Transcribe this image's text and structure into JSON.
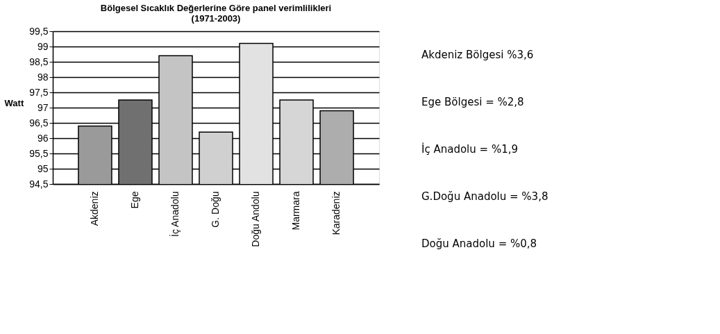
{
  "chart_data": {
    "type": "bar",
    "title": "Bölgesel Sıcaklık Değerlerine Göre panel verimlilikleri\n(1971-2003)",
    "ylabel": "Watt",
    "categories": [
      "Akdeniz",
      "Ege",
      "İç Anadolu",
      "G. Doğu",
      "Doğu Andolu",
      "Marmara",
      "Karadeniz"
    ],
    "values": [
      96.4,
      97.25,
      98.7,
      96.2,
      99.1,
      97.25,
      96.9
    ],
    "colors": [
      "#9a9a9a",
      "#707070",
      "#c4c4c4",
      "#d0d0d0",
      "#e2e2e2",
      "#d6d6d6",
      "#adadad"
    ],
    "ylim": [
      94.5,
      99.5
    ],
    "yticks": [
      {
        "value": 94.5,
        "label": "94,5"
      },
      95,
      {
        "value": 95.5,
        "label": "95,5"
      },
      96,
      {
        "value": 96.5,
        "label": "96,5"
      },
      97,
      {
        "value": 97.5,
        "label": "97,5"
      },
      98,
      {
        "value": 98.5,
        "label": "98,5"
      },
      99,
      {
        "value": 99.5,
        "label": "99,5"
      }
    ],
    "grid": "y",
    "annotations": [
      "Akdeniz Bölgesi %3,6",
      "Ege Bölgesi = %2,8",
      "İç Anadolu = %1,9",
      "G.Doğu Anadolu = %3,8",
      "Doğu Anadolu = %0,8"
    ]
  }
}
